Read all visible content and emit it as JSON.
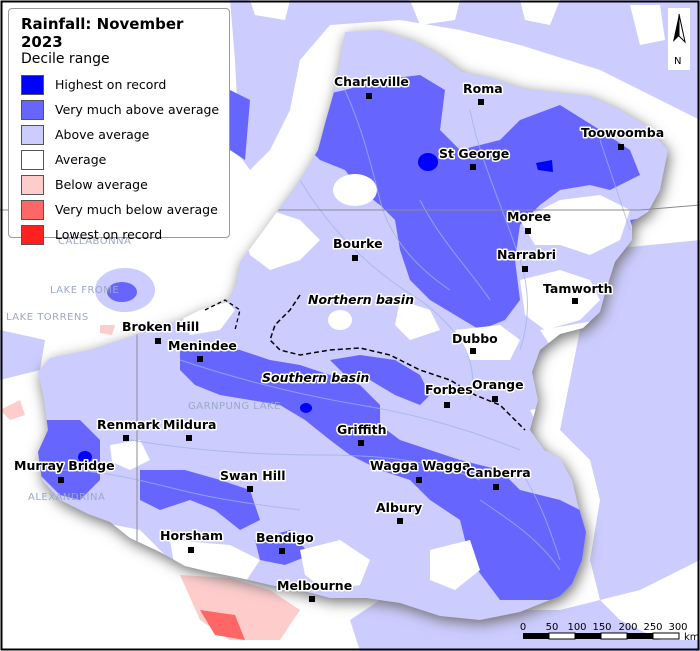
{
  "legend": {
    "title": "Rainfall: November 2023",
    "subtitle": "Decile range",
    "items": [
      {
        "label": "Highest on record",
        "color": "#0000ff"
      },
      {
        "label": "Very much above average",
        "color": "#6666ff"
      },
      {
        "label": "Above average",
        "color": "#ccccff"
      },
      {
        "label": "Average",
        "color": "#ffffff"
      },
      {
        "label": "Below average",
        "color": "#ffcccc"
      },
      {
        "label": "Very much below average",
        "color": "#ff6666"
      },
      {
        "label": "Lowest on record",
        "color": "#ff2020"
      }
    ]
  },
  "places": [
    {
      "name": "Charleville"
    },
    {
      "name": "Roma"
    },
    {
      "name": "Toowoomba"
    },
    {
      "name": "St George"
    },
    {
      "name": "Moree"
    },
    {
      "name": "Bourke"
    },
    {
      "name": "Narrabri"
    },
    {
      "name": "Tamworth"
    },
    {
      "name": "Broken Hill"
    },
    {
      "name": "Menindee"
    },
    {
      "name": "Dubbo"
    },
    {
      "name": "Forbes"
    },
    {
      "name": "Orange"
    },
    {
      "name": "Renmark"
    },
    {
      "name": "Mildura"
    },
    {
      "name": "Griffith"
    },
    {
      "name": "Murray Bridge"
    },
    {
      "name": "Wagga Wagga"
    },
    {
      "name": "Canberra"
    },
    {
      "name": "Swan Hill"
    },
    {
      "name": "Albury"
    },
    {
      "name": "Horsham"
    },
    {
      "name": "Bendigo"
    },
    {
      "name": "Melbourne"
    }
  ],
  "basins": {
    "northern": "Northern basin",
    "southern": "Southern basin"
  },
  "background_labels": {
    "callabonna": "CALLABONNA",
    "frome": "LAKE FROME",
    "torrens": "LAKE TORRENS",
    "garnpung": "GARNPUNG LAKE",
    "alexandrina": "ALEXANDRINA"
  },
  "scale_bar": {
    "ticks": [
      "0",
      "50",
      "100",
      "150",
      "200",
      "250",
      "300"
    ],
    "unit": "km"
  },
  "north_arrow": {
    "label": "N"
  }
}
